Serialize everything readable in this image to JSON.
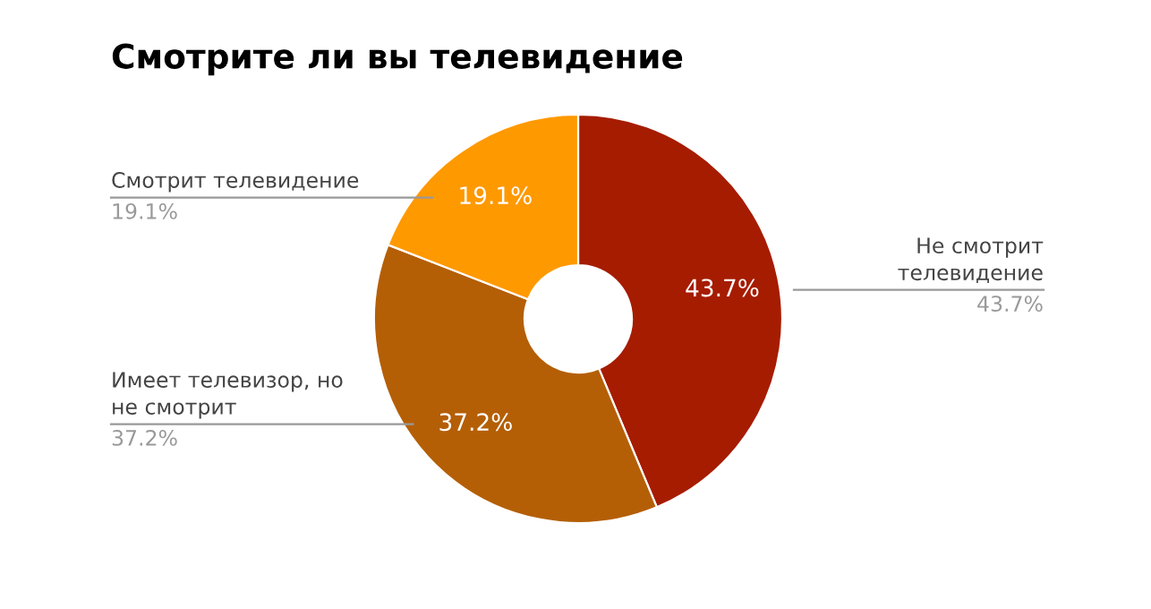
{
  "chart_data": {
    "type": "donut",
    "title": "Смотрите ли вы телевидение",
    "categories": [
      "Не смотрит\nтелевидение",
      "Имеет телевизор, но\nне смотрит",
      "Смотрит телевидение"
    ],
    "values": [
      43.7,
      37.2,
      19.1
    ],
    "colors": [
      "#a61c00",
      "#b45f06",
      "#ff9900"
    ],
    "value_labels": [
      "43.7%",
      "37.2%",
      "19.1%"
    ],
    "legend": false
  }
}
